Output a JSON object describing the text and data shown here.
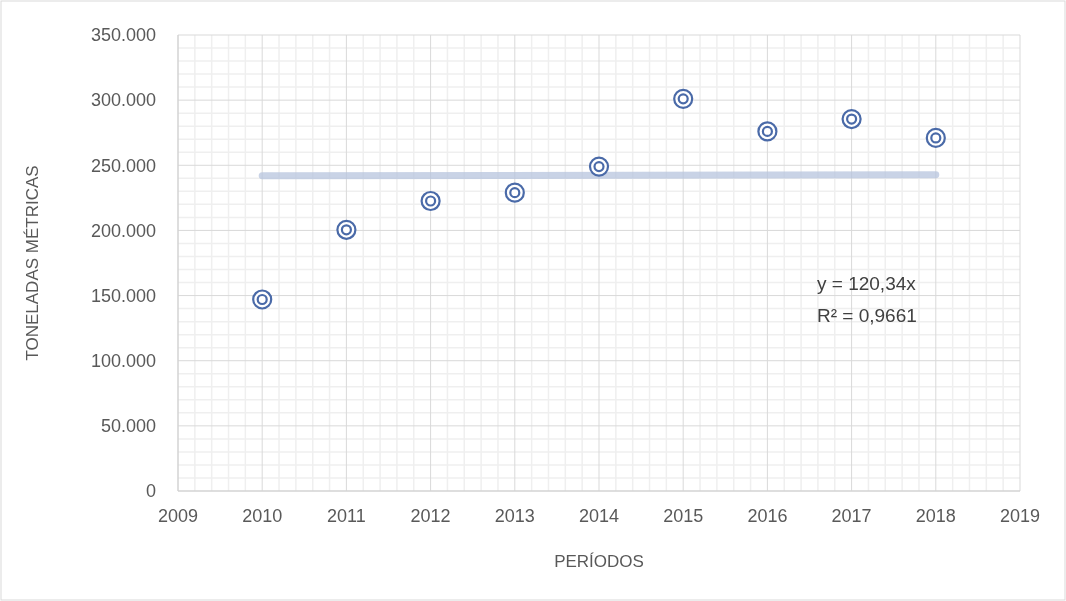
{
  "chart_data": {
    "type": "scatter",
    "xlabel": "PERÍODOS",
    "ylabel": "TONELADAS MÉTRICAS",
    "x": [
      2010,
      2011,
      2012,
      2013,
      2014,
      2015,
      2016,
      2017,
      2018
    ],
    "series": [
      {
        "color": "#4a6aa8",
        "marker": "circle",
        "values": [
          147000,
          200500,
          222600,
          229000,
          249000,
          301000,
          276000,
          285500,
          271000
        ]
      },
      {
        "type": "line",
        "color": "#b7c4dd",
        "x": [
          2010,
          2018
        ],
        "values": [
          241900,
          242800
        ],
        "line_style": "solid"
      }
    ],
    "xlim": [
      2009,
      2019
    ],
    "xticks": [
      2009,
      2010,
      2011,
      2012,
      2013,
      2014,
      2015,
      2016,
      2017,
      2018,
      2019
    ],
    "ylim": [
      0,
      350000
    ],
    "yticks": [
      0,
      {
        "value": 50000,
        "label": "50.000"
      },
      {
        "value": 100000,
        "label": "100.000"
      },
      {
        "value": 150000,
        "label": "150.000"
      },
      {
        "value": 200000,
        "label": "200.000"
      },
      {
        "value": 250000,
        "label": "250.000"
      },
      {
        "value": 300000,
        "label": "300.000"
      },
      {
        "value": 350000,
        "label": "350.000"
      }
    ],
    "grid": true,
    "annotations": [
      "y = 120,34x",
      "R² = 0,9661"
    ]
  }
}
